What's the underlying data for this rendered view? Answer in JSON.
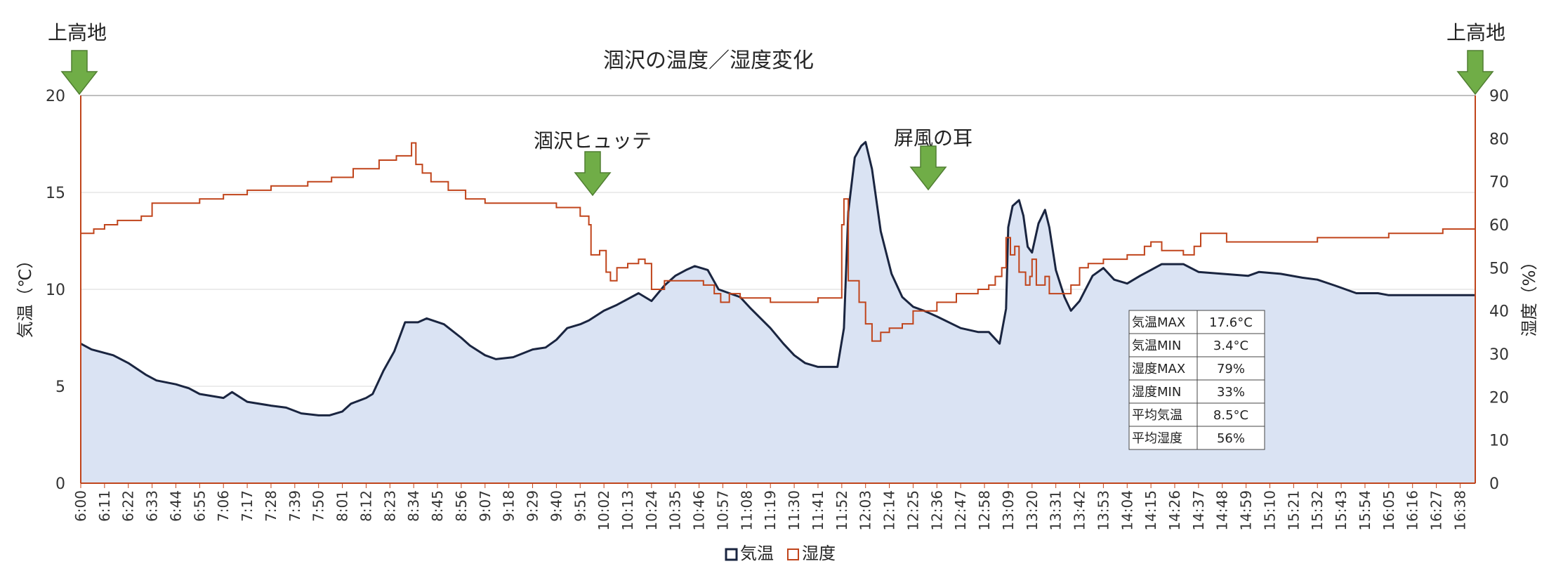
{
  "chart_data": {
    "type": "line",
    "title": "涸沢の温度／湿度変化",
    "ylabel_left": "気温（℃）",
    "ylabel_right": "湿度（%）",
    "ylim_left": [
      0,
      20
    ],
    "ylim_right": [
      0,
      90
    ],
    "yticks_left": [
      "0",
      "5",
      "10",
      "15",
      "20"
    ],
    "yticks_right": [
      "0",
      "10",
      "20",
      "30",
      "40",
      "50",
      "60",
      "70",
      "80",
      "90"
    ],
    "grid": "horizontal",
    "legend_position": "bottom",
    "x_start": "6:00",
    "x_end": "16:45",
    "x_tick_labels": [
      "6:00",
      "6:11",
      "6:22",
      "6:33",
      "6:44",
      "6:55",
      "7:06",
      "7:17",
      "7:28",
      "7:39",
      "7:50",
      "8:01",
      "8:12",
      "8:23",
      "8:34",
      "8:45",
      "8:56",
      "9:07",
      "9:18",
      "9:29",
      "9:40",
      "9:51",
      "10:02",
      "10:13",
      "10:24",
      "10:35",
      "10:46",
      "10:57",
      "11:08",
      "11:19",
      "11:30",
      "11:41",
      "11:52",
      "12:03",
      "12:14",
      "12:25",
      "12:36",
      "12:47",
      "12:58",
      "13:09",
      "13:20",
      "13:31",
      "13:42",
      "13:53",
      "14:04",
      "14:15",
      "14:26",
      "14:37",
      "14:48",
      "14:59",
      "15:10",
      "15:21",
      "15:32",
      "15:43",
      "15:54",
      "16:05",
      "16:16",
      "16:27",
      "16:38"
    ],
    "series": [
      {
        "name": "気温",
        "axis": "left",
        "color": "#1a2540",
        "fill": "#dae3f3",
        "points": [
          [
            "6:00",
            7.2
          ],
          [
            "6:05",
            6.9
          ],
          [
            "6:15",
            6.6
          ],
          [
            "6:22",
            6.2
          ],
          [
            "6:30",
            5.6
          ],
          [
            "6:35",
            5.3
          ],
          [
            "6:44",
            5.1
          ],
          [
            "6:50",
            4.9
          ],
          [
            "6:55",
            4.6
          ],
          [
            "7:06",
            4.4
          ],
          [
            "7:10",
            4.7
          ],
          [
            "7:17",
            4.2
          ],
          [
            "7:28",
            4.0
          ],
          [
            "7:35",
            3.9
          ],
          [
            "7:42",
            3.6
          ],
          [
            "7:50",
            3.5
          ],
          [
            "7:55",
            3.5
          ],
          [
            "8:01",
            3.7
          ],
          [
            "8:05",
            4.1
          ],
          [
            "8:12",
            4.4
          ],
          [
            "8:15",
            4.6
          ],
          [
            "8:20",
            5.8
          ],
          [
            "8:25",
            6.8
          ],
          [
            "8:30",
            8.3
          ],
          [
            "8:36",
            8.3
          ],
          [
            "8:40",
            8.5
          ],
          [
            "8:48",
            8.2
          ],
          [
            "8:56",
            7.5
          ],
          [
            "9:00",
            7.1
          ],
          [
            "9:07",
            6.6
          ],
          [
            "9:12",
            6.4
          ],
          [
            "9:20",
            6.5
          ],
          [
            "9:29",
            6.9
          ],
          [
            "9:35",
            7.0
          ],
          [
            "9:40",
            7.4
          ],
          [
            "9:45",
            8.0
          ],
          [
            "9:51",
            8.2
          ],
          [
            "9:55",
            8.4
          ],
          [
            "10:02",
            8.9
          ],
          [
            "10:08",
            9.2
          ],
          [
            "10:13",
            9.5
          ],
          [
            "10:18",
            9.8
          ],
          [
            "10:24",
            9.4
          ],
          [
            "10:30",
            10.2
          ],
          [
            "10:35",
            10.7
          ],
          [
            "10:40",
            11.0
          ],
          [
            "10:44",
            11.2
          ],
          [
            "10:50",
            11.0
          ],
          [
            "10:55",
            10.0
          ],
          [
            "11:00",
            9.8
          ],
          [
            "11:05",
            9.6
          ],
          [
            "11:10",
            9.0
          ],
          [
            "11:19",
            8.0
          ],
          [
            "11:25",
            7.2
          ],
          [
            "11:30",
            6.6
          ],
          [
            "11:35",
            6.2
          ],
          [
            "11:41",
            6.0
          ],
          [
            "11:50",
            6.0
          ],
          [
            "11:53",
            8.0
          ],
          [
            "11:55",
            14.0
          ],
          [
            "11:58",
            16.8
          ],
          [
            "12:01",
            17.4
          ],
          [
            "12:03",
            17.6
          ],
          [
            "12:06",
            16.2
          ],
          [
            "12:10",
            13.0
          ],
          [
            "12:15",
            10.8
          ],
          [
            "12:20",
            9.6
          ],
          [
            "12:25",
            9.1
          ],
          [
            "12:30",
            8.9
          ],
          [
            "12:36",
            8.6
          ],
          [
            "12:47",
            8.0
          ],
          [
            "12:55",
            7.8
          ],
          [
            "13:00",
            7.8
          ],
          [
            "13:05",
            7.2
          ],
          [
            "13:08",
            9.0
          ],
          [
            "13:09",
            13.2
          ],
          [
            "13:11",
            14.3
          ],
          [
            "13:14",
            14.6
          ],
          [
            "13:16",
            13.8
          ],
          [
            "13:18",
            12.2
          ],
          [
            "13:20",
            11.9
          ],
          [
            "13:23",
            13.4
          ],
          [
            "13:26",
            14.1
          ],
          [
            "13:28",
            13.2
          ],
          [
            "13:31",
            11.0
          ],
          [
            "13:35",
            9.6
          ],
          [
            "13:38",
            8.9
          ],
          [
            "13:42",
            9.4
          ],
          [
            "13:48",
            10.7
          ],
          [
            "13:53",
            11.1
          ],
          [
            "13:58",
            10.5
          ],
          [
            "14:04",
            10.3
          ],
          [
            "14:10",
            10.7
          ],
          [
            "14:15",
            11.0
          ],
          [
            "14:20",
            11.3
          ],
          [
            "14:30",
            11.3
          ],
          [
            "14:37",
            10.9
          ],
          [
            "14:48",
            10.8
          ],
          [
            "15:00",
            10.7
          ],
          [
            "15:05",
            10.9
          ],
          [
            "15:15",
            10.8
          ],
          [
            "15:25",
            10.6
          ],
          [
            "15:32",
            10.5
          ],
          [
            "15:40",
            10.2
          ],
          [
            "15:50",
            9.8
          ],
          [
            "16:00",
            9.8
          ],
          [
            "16:05",
            9.7
          ],
          [
            "16:16",
            9.7
          ],
          [
            "16:45",
            9.7
          ]
        ]
      },
      {
        "name": "湿度",
        "axis": "right",
        "color": "#c0441b",
        "points": [
          [
            "6:00",
            58
          ],
          [
            "6:06",
            59
          ],
          [
            "6:11",
            60
          ],
          [
            "6:17",
            61
          ],
          [
            "6:28",
            62
          ],
          [
            "6:33",
            65
          ],
          [
            "6:55",
            66
          ],
          [
            "7:06",
            67
          ],
          [
            "7:17",
            68
          ],
          [
            "7:28",
            69
          ],
          [
            "7:45",
            70
          ],
          [
            "7:56",
            71
          ],
          [
            "8:06",
            73
          ],
          [
            "8:18",
            75
          ],
          [
            "8:26",
            76
          ],
          [
            "8:31",
            76
          ],
          [
            "8:33",
            79
          ],
          [
            "8:35",
            74
          ],
          [
            "8:38",
            72
          ],
          [
            "8:42",
            70
          ],
          [
            "8:50",
            68
          ],
          [
            "8:58",
            66
          ],
          [
            "9:07",
            65
          ],
          [
            "9:40",
            64
          ],
          [
            "9:51",
            62
          ],
          [
            "9:55",
            60
          ],
          [
            "9:56",
            53
          ],
          [
            "9:58",
            53
          ],
          [
            "10:00",
            54
          ],
          [
            "10:03",
            49
          ],
          [
            "10:05",
            47
          ],
          [
            "10:08",
            50
          ],
          [
            "10:13",
            51
          ],
          [
            "10:18",
            52
          ],
          [
            "10:21",
            51
          ],
          [
            "10:24",
            45
          ],
          [
            "10:30",
            47
          ],
          [
            "10:35",
            47
          ],
          [
            "10:48",
            46
          ],
          [
            "10:53",
            44
          ],
          [
            "10:56",
            42
          ],
          [
            "11:00",
            44
          ],
          [
            "11:05",
            43
          ],
          [
            "11:19",
            42
          ],
          [
            "11:41",
            43
          ],
          [
            "11:50",
            43
          ],
          [
            "11:52",
            60
          ],
          [
            "11:53",
            66
          ],
          [
            "11:55",
            47
          ],
          [
            "12:00",
            42
          ],
          [
            "12:03",
            37
          ],
          [
            "12:06",
            33
          ],
          [
            "12:10",
            35
          ],
          [
            "12:14",
            36
          ],
          [
            "12:20",
            37
          ],
          [
            "12:25",
            40
          ],
          [
            "12:36",
            42
          ],
          [
            "12:45",
            44
          ],
          [
            "12:55",
            45
          ],
          [
            "13:00",
            46
          ],
          [
            "13:03",
            48
          ],
          [
            "13:06",
            50
          ],
          [
            "13:08",
            57
          ],
          [
            "13:10",
            53
          ],
          [
            "13:12",
            55
          ],
          [
            "13:14",
            49
          ],
          [
            "13:17",
            46
          ],
          [
            "13:19",
            48
          ],
          [
            "13:20",
            52
          ],
          [
            "13:22",
            46
          ],
          [
            "13:26",
            48
          ],
          [
            "13:28",
            44
          ],
          [
            "13:35",
            44
          ],
          [
            "13:38",
            46
          ],
          [
            "13:42",
            50
          ],
          [
            "13:46",
            51
          ],
          [
            "13:53",
            52
          ],
          [
            "14:04",
            53
          ],
          [
            "14:12",
            55
          ],
          [
            "14:15",
            56
          ],
          [
            "14:20",
            54
          ],
          [
            "14:26",
            54
          ],
          [
            "14:30",
            53
          ],
          [
            "14:35",
            55
          ],
          [
            "14:38",
            58
          ],
          [
            "14:45",
            58
          ],
          [
            "14:50",
            56
          ],
          [
            "15:32",
            57
          ],
          [
            "16:05",
            58
          ],
          [
            "16:30",
            59
          ],
          [
            "16:45",
            59
          ]
        ]
      }
    ],
    "annotations": [
      {
        "label": "上高地",
        "at": "6:00"
      },
      {
        "label": "涸沢ヒュッテ",
        "at": "9:59"
      },
      {
        "label": "屏風の耳",
        "at": "12:32"
      },
      {
        "label": "上高地",
        "at": "16:45"
      }
    ],
    "stats_table": [
      [
        "気温MAX",
        "17.6°C"
      ],
      [
        "気温MIN",
        "3.4°C"
      ],
      [
        "湿度MAX",
        "79%"
      ],
      [
        "湿度MIN",
        "33%"
      ],
      [
        "平均気温",
        "8.5°C"
      ],
      [
        "平均湿度",
        "56%"
      ]
    ]
  }
}
